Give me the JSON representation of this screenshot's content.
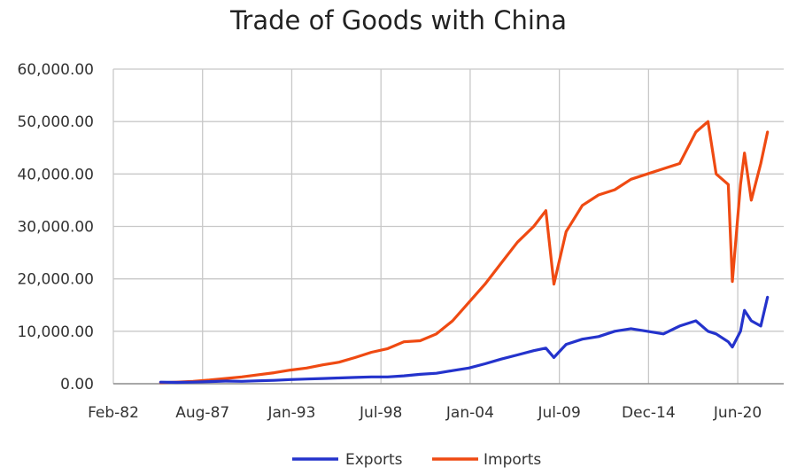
{
  "chart_data": {
    "type": "line",
    "title": "Trade of Goods with China",
    "xlabel": "",
    "ylabel": "",
    "x_tick_labels": [
      "Feb-82",
      "Aug-87",
      "Jan-93",
      "Jul-98",
      "Jan-04",
      "Jul-09",
      "Dec-14",
      "Jun-20"
    ],
    "y_tick_labels": [
      "0.00",
      "10,000.00",
      "20,000.00",
      "30,000.00",
      "40,000.00",
      "50,000.00",
      "60,000.00"
    ],
    "xlim": [
      "1982-02",
      "2023-06"
    ],
    "ylim": [
      0,
      60000
    ],
    "grid": true,
    "legend": "bottom-center",
    "colors": {
      "Exports": "#2433cc",
      "Imports": "#ef4a12",
      "grid": "#c8c8c8",
      "axis": "#8c8c8c"
    },
    "x": [
      "1985-01",
      "1986-01",
      "1987-01",
      "1988-01",
      "1989-01",
      "1990-01",
      "1991-01",
      "1992-01",
      "1993-01",
      "1994-01",
      "1995-01",
      "1996-01",
      "1997-01",
      "1998-01",
      "1999-01",
      "2000-01",
      "2001-01",
      "2002-01",
      "2003-01",
      "2004-01",
      "2005-01",
      "2006-01",
      "2007-01",
      "2008-01",
      "2008-10",
      "2009-04",
      "2010-01",
      "2011-01",
      "2012-01",
      "2013-01",
      "2014-01",
      "2015-01",
      "2016-01",
      "2017-01",
      "2018-01",
      "2018-10",
      "2019-04",
      "2020-01",
      "2020-04",
      "2020-10",
      "2021-01",
      "2021-06",
      "2022-01",
      "2022-06"
    ],
    "series": [
      {
        "name": "Exports",
        "values": [
          300,
          250,
          300,
          400,
          500,
          450,
          550,
          650,
          800,
          900,
          1000,
          1100,
          1200,
          1300,
          1300,
          1500,
          1800,
          2000,
          2500,
          3000,
          3800,
          4700,
          5500,
          6300,
          6800,
          5000,
          7500,
          8500,
          9000,
          10000,
          10500,
          10000,
          9500,
          11000,
          12000,
          10000,
          9500,
          8000,
          7000,
          10000,
          14000,
          12000,
          11000,
          16500
        ]
      },
      {
        "name": "Imports",
        "values": [
          200,
          300,
          450,
          700,
          1000,
          1300,
          1700,
          2100,
          2600,
          3000,
          3600,
          4100,
          5000,
          6000,
          6700,
          8000,
          8200,
          9500,
          12000,
          15500,
          19000,
          23000,
          27000,
          30000,
          33000,
          19000,
          29000,
          34000,
          36000,
          37000,
          39000,
          40000,
          41000,
          42000,
          48000,
          50000,
          40000,
          38000,
          19500,
          38000,
          44000,
          35000,
          42000,
          48000
        ]
      }
    ]
  }
}
